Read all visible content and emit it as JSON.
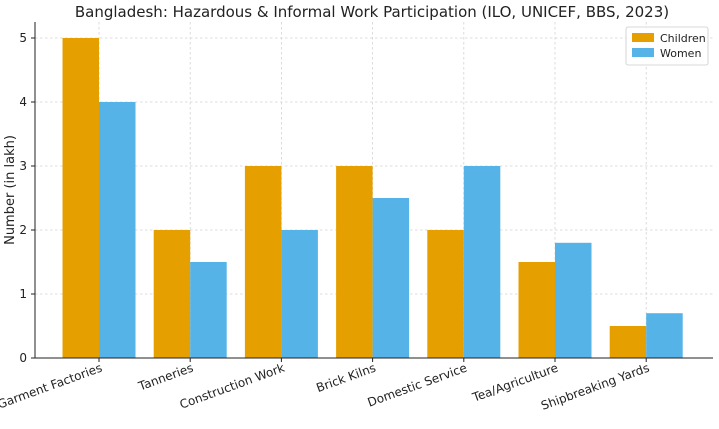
{
  "chart_data": {
    "type": "bar",
    "title": "Bangladesh: Hazardous & Informal Work Participation (ILO, UNICEF, BBS, 2023)",
    "xlabel": "",
    "ylabel": "Number (in lakh)",
    "ylim": [
      0,
      5.25
    ],
    "yticks": [
      "0",
      "1",
      "2",
      "3",
      "4",
      "5"
    ],
    "grid": true,
    "legend_position": "top-right",
    "categories": [
      "Garment Factories",
      "Tanneries",
      "Construction Work",
      "Brick Kilns",
      "Domestic Service",
      "Tea/Agriculture",
      "Shipbreaking Yards"
    ],
    "series": [
      {
        "name": "Children",
        "color": "#e5a000",
        "values": [
          5,
          2,
          3,
          3,
          2,
          1.5,
          0.5
        ]
      },
      {
        "name": "Women",
        "color": "#56b3e8",
        "values": [
          4,
          1.5,
          2,
          2.5,
          3,
          1.8,
          0.7
        ]
      }
    ]
  }
}
